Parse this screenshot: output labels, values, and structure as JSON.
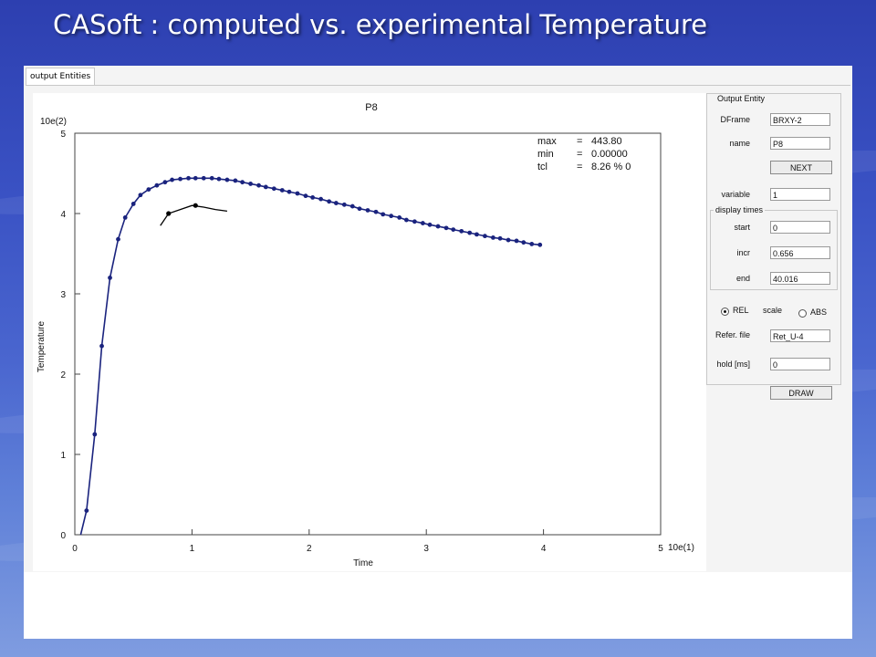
{
  "slide": {
    "title": "CASoft : computed vs. experimental Temperature"
  },
  "tabs": [
    {
      "label": "output Entities"
    }
  ],
  "chart_data": {
    "type": "line",
    "title": "P8",
    "xlabel": "Time",
    "ylabel": "Temperature",
    "x_scale_label": "10e(1)",
    "y_scale_label": "10e(2)",
    "xlim": [
      0,
      5
    ],
    "ylim": [
      0,
      5
    ],
    "x_ticks": [
      "0",
      "1",
      "2",
      "3",
      "4",
      "5"
    ],
    "y_ticks": [
      "0",
      "1",
      "2",
      "3",
      "4",
      "5"
    ],
    "grid": false,
    "stats": [
      {
        "label": "max",
        "value": "443.80"
      },
      {
        "label": "min",
        "value": "0.00000"
      },
      {
        "label": "tcl",
        "value": "8.26 % 0"
      }
    ],
    "series": [
      {
        "color": "#1a237e",
        "style": "line-markers",
        "x": [
          0.05,
          0.1,
          0.17,
          0.23,
          0.3,
          0.37,
          0.43,
          0.5,
          0.56,
          0.63,
          0.7,
          0.77,
          0.83,
          0.9,
          0.97,
          1.03,
          1.1,
          1.17,
          1.23,
          1.3,
          1.37,
          1.43,
          1.5,
          1.57,
          1.63,
          1.7,
          1.77,
          1.83,
          1.9,
          1.97,
          2.03,
          2.1,
          2.17,
          2.23,
          2.3,
          2.37,
          2.43,
          2.5,
          2.57,
          2.63,
          2.7,
          2.77,
          2.83,
          2.9,
          2.97,
          3.03,
          3.1,
          3.17,
          3.23,
          3.3,
          3.37,
          3.43,
          3.5,
          3.57,
          3.63,
          3.7,
          3.77,
          3.83,
          3.9,
          3.97
        ],
        "y": [
          0.0,
          0.3,
          1.25,
          2.35,
          3.2,
          3.68,
          3.95,
          4.12,
          4.23,
          4.3,
          4.35,
          4.39,
          4.42,
          4.43,
          4.44,
          4.44,
          4.44,
          4.44,
          4.43,
          4.42,
          4.41,
          4.39,
          4.37,
          4.35,
          4.33,
          4.31,
          4.29,
          4.27,
          4.25,
          4.22,
          4.2,
          4.18,
          4.15,
          4.13,
          4.11,
          4.09,
          4.06,
          4.04,
          4.02,
          3.99,
          3.97,
          3.95,
          3.92,
          3.9,
          3.88,
          3.86,
          3.84,
          3.82,
          3.8,
          3.78,
          3.76,
          3.74,
          3.72,
          3.7,
          3.69,
          3.67,
          3.66,
          3.64,
          3.62,
          3.61
        ]
      },
      {
        "color": "#000000",
        "style": "line-sparse-markers",
        "x": [
          0.73,
          0.8,
          0.9,
          1.0,
          1.1,
          1.2,
          1.3
        ],
        "y": [
          3.85,
          4.0,
          4.05,
          4.1,
          4.08,
          4.05,
          4.03
        ],
        "marked_x": [
          0.8,
          1.03
        ]
      }
    ]
  },
  "panel": {
    "output_entity_title": "Output Entity",
    "drframe_label": "DFrame",
    "drframe_value": "BRXY-2",
    "name_label": "name",
    "name_value": "P8",
    "next_label": "NEXT",
    "variable_label": "variable",
    "variable_value": "1",
    "display_times_title": "display times",
    "start_label": "start",
    "start_value": "0",
    "incr_label": "incr",
    "incr_value": "0.656",
    "end_label": "end",
    "end_value": "40.016",
    "rel_label": "REL",
    "scale_label": "scale",
    "abs_label": "ABS",
    "refer_file_label": "Refer. file",
    "refer_file_value": "Ret_U-4",
    "hold_label": "hold [ms]",
    "hold_value": "0",
    "draw_label": "DRAW"
  }
}
